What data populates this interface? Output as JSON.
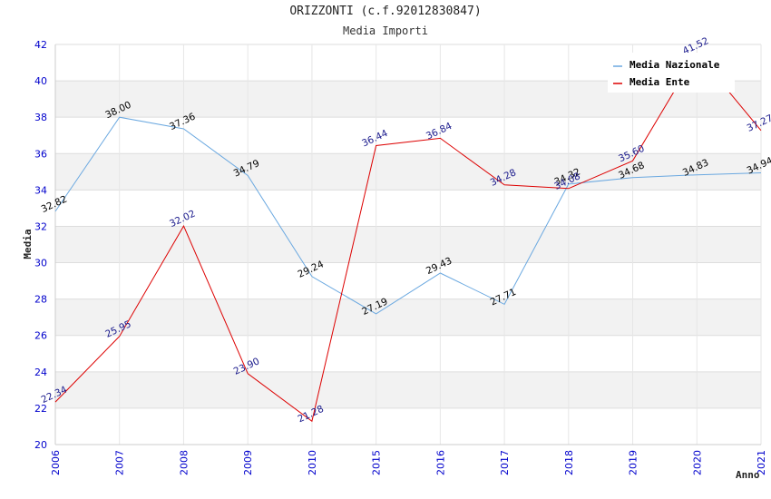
{
  "chart_data": {
    "type": "line",
    "title": "ORIZZONTI (c.f.92012830847)",
    "subtitle": "Media Importi",
    "xlabel": "Anno",
    "ylabel": "Media",
    "categories": [
      "2006",
      "2007",
      "2008",
      "2009",
      "2010",
      "2015",
      "2016",
      "2017",
      "2018",
      "2019",
      "2020",
      "2021"
    ],
    "ylim": [
      20,
      42
    ],
    "yticks": [
      20,
      22,
      24,
      26,
      28,
      30,
      32,
      34,
      36,
      38,
      40,
      42
    ],
    "grid": true,
    "legend_position": "top-right",
    "series": [
      {
        "name": "Media Nazionale",
        "color": "#6aa8e0",
        "label_color": "#000000",
        "values": [
          32.82,
          38.0,
          37.36,
          34.79,
          29.24,
          27.19,
          29.43,
          27.71,
          34.32,
          34.68,
          34.83,
          34.94
        ],
        "labels": [
          "32.82",
          "38.00",
          "37.36",
          "34.79",
          "29.24",
          "27.19",
          "29.43",
          "27.71",
          "34.32",
          "34.68",
          "34.83",
          "34.94"
        ]
      },
      {
        "name": "Media Ente",
        "color": "#dd0000",
        "label_color": "#1a1a8c",
        "values": [
          22.34,
          25.95,
          32.02,
          23.9,
          21.28,
          36.44,
          36.84,
          34.28,
          34.08,
          35.6,
          41.52,
          37.27
        ],
        "labels": [
          "22.34",
          "25.95",
          "32.02",
          "23.90",
          "21.28",
          "36.44",
          "36.84",
          "34.28",
          "34.08",
          "35.60",
          "41.52",
          "37.27"
        ]
      }
    ],
    "colors": {
      "axis_text": "#0000cc",
      "band": "#f2f2f2",
      "grid": "#dddddd"
    }
  }
}
